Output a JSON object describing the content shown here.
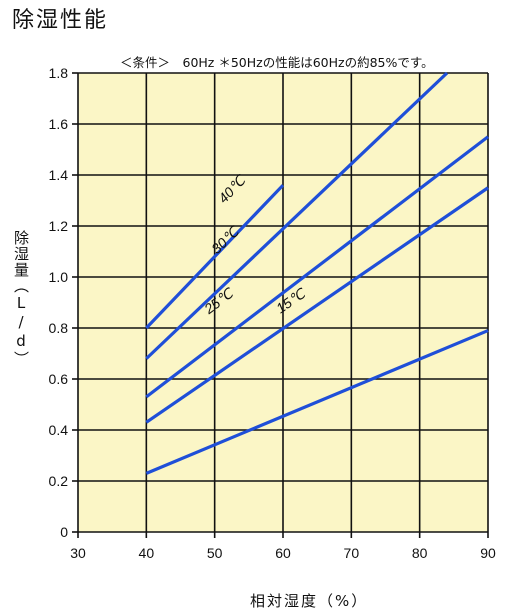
{
  "title": "除湿性能",
  "condition_note": "＜条件＞　60Hz ＊50Hzの性能は60Hzの約85%です。",
  "colors": {
    "plot_bg": "#fbf6c6",
    "grid": "#111111",
    "line": "#1f4fd8"
  },
  "chart_data": {
    "type": "line",
    "title": "除湿性能",
    "xlabel": "相対湿度（%）",
    "ylabel": "除湿量（L/d）",
    "xlim": [
      30,
      90
    ],
    "ylim": [
      0,
      1.8
    ],
    "xticks": [
      "30",
      "40",
      "50",
      "60",
      "70",
      "80",
      "90"
    ],
    "yticks": [
      "0",
      "0.2",
      "0.4",
      "0.6",
      "0.8",
      "1.0",
      "1.2",
      "1.4",
      "1.6",
      "1.8"
    ],
    "grid": true,
    "series": [
      {
        "name": "40℃",
        "x": [
          40,
          60
        ],
        "y": [
          0.8,
          1.36
        ]
      },
      {
        "name": "30℃",
        "x": [
          40,
          84
        ],
        "y": [
          0.68,
          1.8
        ]
      },
      {
        "name": "25℃",
        "x": [
          40,
          90
        ],
        "y": [
          0.53,
          1.55
        ]
      },
      {
        "name": "15℃",
        "x": [
          40,
          90
        ],
        "y": [
          0.43,
          1.35
        ]
      },
      {
        "name": "",
        "x": [
          40,
          90
        ],
        "y": [
          0.23,
          0.79
        ]
      }
    ],
    "series_label_pos": [
      {
        "x": 53,
        "y": 1.33
      },
      {
        "x": 52,
        "y": 1.13
      },
      {
        "x": 51,
        "y": 0.89
      },
      {
        "x": 61.5,
        "y": 0.89
      }
    ]
  }
}
